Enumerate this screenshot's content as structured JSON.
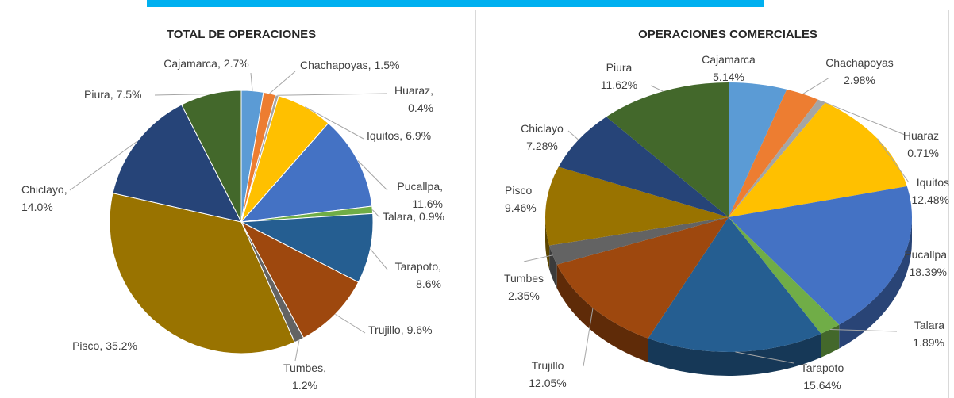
{
  "chart_data": [
    {
      "type": "pie",
      "title": "TOTAL DE OPERACIONES",
      "categories": [
        "Cajamarca",
        "Chachapoyas",
        "Huaraz",
        "Iquitos",
        "Pucallpa",
        "Talara",
        "Tarapoto",
        "Trujillo",
        "Tumbes",
        "Pisco",
        "Chiclayo",
        "Piura"
      ],
      "values": [
        2.7,
        1.5,
        0.4,
        6.9,
        11.6,
        0.9,
        8.6,
        9.6,
        1.2,
        35.2,
        14.0,
        7.5
      ],
      "value_labels": [
        "2.7%",
        "1.5%",
        "0.4%",
        "6.9%",
        "11.6%",
        "0.9%",
        "8.6%",
        "9.6%",
        "1.2%",
        "35.2%",
        "14.0%",
        "7.5%"
      ],
      "label_separator": ",",
      "colors": [
        "#5b9bd5",
        "#ed7d31",
        "#a5a5a5",
        "#ffc000",
        "#4472c4",
        "#70ad47",
        "#255e91",
        "#9e480e",
        "#636363",
        "#997300",
        "#264478",
        "#43682b"
      ]
    },
    {
      "type": "pie",
      "three_d": true,
      "title": "OPERACIONES COMERCIALES",
      "categories": [
        "Cajamarca",
        "Chachapoyas",
        "Huaraz",
        "Iquitos",
        "Pucallpa",
        "Talara",
        "Tarapoto",
        "Trujillo",
        "Tumbes",
        "Pisco",
        "Chiclayo",
        "Piura"
      ],
      "values": [
        5.14,
        2.98,
        0.71,
        12.48,
        18.39,
        1.89,
        15.64,
        12.05,
        2.35,
        9.46,
        7.28,
        11.62
      ],
      "value_labels": [
        "5.14%",
        "2.98%",
        "0.71%",
        "12.48%",
        "18.39%",
        "1.89%",
        "15.64%",
        "12.05%",
        "2.35%",
        "9.46%",
        "7.28%",
        "11.62%"
      ],
      "colors": [
        "#5b9bd5",
        "#ed7d31",
        "#a5a5a5",
        "#ffc000",
        "#4472c4",
        "#70ad47",
        "#255e91",
        "#9e480e",
        "#636363",
        "#997300",
        "#264478",
        "#43682b"
      ]
    }
  ]
}
